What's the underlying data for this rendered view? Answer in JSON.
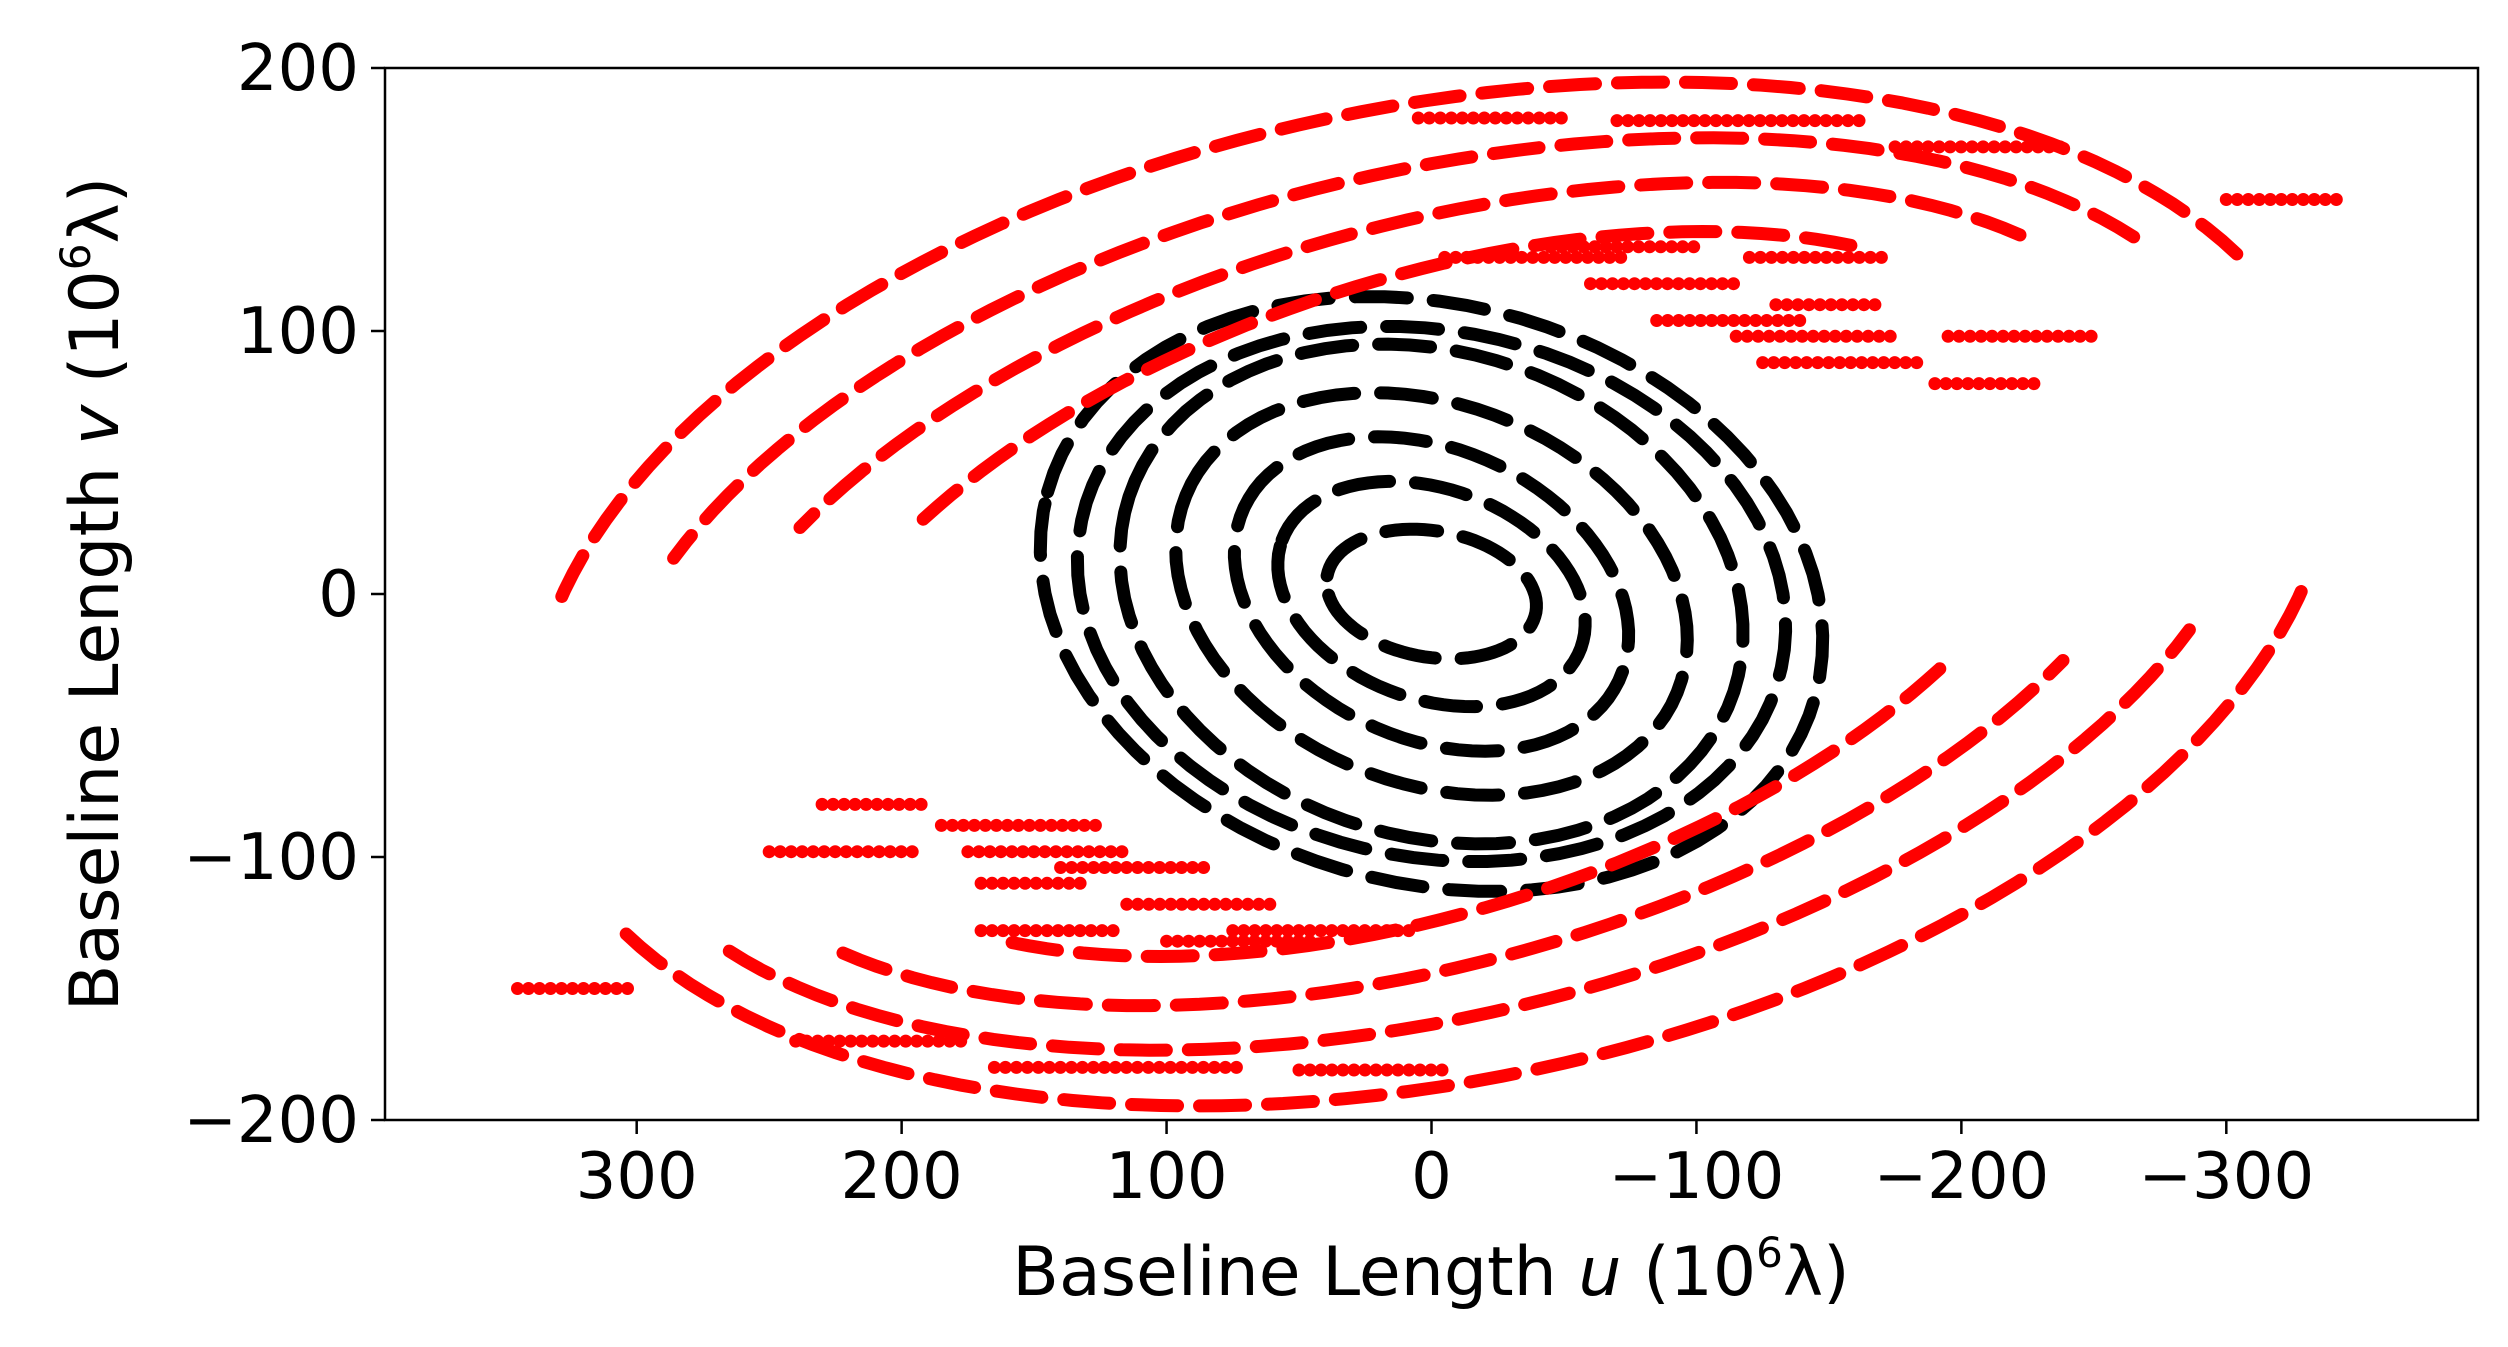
{
  "chart_data": {
    "type": "scatter",
    "xlabel_prefix": "Baseline Length ",
    "xlabel_var": "u",
    "ylabel_prefix": "Baseline Length ",
    "ylabel_var": "v",
    "axis_unit_open": " (10",
    "axis_unit_exp": "6",
    "axis_unit_close": "λ)",
    "x_reversed": true,
    "xlim": [
      395,
      -395
    ],
    "ylim": [
      -200,
      200
    ],
    "x_ticks": [
      300,
      200,
      100,
      0,
      -100,
      -200,
      -300
    ],
    "x_tick_labels": [
      "300",
      "200",
      "100",
      "0",
      "−100",
      "−200",
      "−300"
    ],
    "y_ticks": [
      200,
      100,
      0,
      -100,
      -200
    ],
    "y_tick_labels": [
      "200",
      "100",
      "0",
      "−100",
      "−200"
    ],
    "grid": false,
    "legend": "none",
    "series_colors": {
      "inner": "#000000",
      "outer": "#ff0000"
    },
    "series": [
      {
        "color": "#000000",
        "ellipses": [
          {
            "a": 120,
            "b": 92,
            "cx": 0,
            "cy": 0,
            "rot": 18
          },
          {
            "a": 150,
            "b": 110,
            "cx": 0,
            "cy": 0,
            "rot": 15
          },
          {
            "a": 100,
            "b": 72,
            "cx": 0,
            "cy": 0,
            "rot": 22
          },
          {
            "a": 78,
            "b": 55,
            "cx": 0,
            "cy": 0,
            "rot": 25
          },
          {
            "a": 60,
            "b": 40,
            "cx": 0,
            "cy": 0,
            "rot": 20
          },
          {
            "a": 40,
            "b": 24,
            "cx": 0,
            "cy": 0,
            "rot": 10
          },
          {
            "a": 135,
            "b": 100,
            "cx": 0,
            "cy": 0,
            "rot": 12
          }
        ]
      },
      {
        "color": "#ff0000",
        "arcs": [
          {
            "a": 345,
            "b": 185,
            "rot": 12,
            "from": 20,
            "to": 160
          },
          {
            "a": 320,
            "b": 160,
            "rot": 14,
            "from": 25,
            "to": 150
          },
          {
            "a": 290,
            "b": 140,
            "rot": 16,
            "from": 30,
            "to": 140
          },
          {
            "a": 250,
            "b": 120,
            "rot": 18,
            "from": 40,
            "to": 135
          },
          {
            "a": 345,
            "b": 185,
            "rot": 12,
            "from": 200,
            "to": 340
          },
          {
            "a": 320,
            "b": 160,
            "rot": 14,
            "from": 205,
            "to": 330
          },
          {
            "a": 290,
            "b": 140,
            "rot": 16,
            "from": 210,
            "to": 320
          },
          {
            "a": 250,
            "b": 120,
            "rot": 18,
            "from": 220,
            "to": 315
          }
        ],
        "rows": [
          {
            "u1": 5,
            "u2": -50,
            "v": 181
          },
          {
            "u1": -70,
            "u2": -165,
            "v": 180
          },
          {
            "u1": -175,
            "u2": -240,
            "v": 170
          },
          {
            "u1": -300,
            "u2": -345,
            "v": 150
          },
          {
            "u1": -5,
            "u2": -75,
            "v": 128
          },
          {
            "u1": -45,
            "u2": -100,
            "v": 132
          },
          {
            "u1": -60,
            "u2": -115,
            "v": 118
          },
          {
            "u1": -120,
            "u2": -170,
            "v": 128
          },
          {
            "u1": -130,
            "u2": -170,
            "v": 110
          },
          {
            "u1": -115,
            "u2": -175,
            "v": 98
          },
          {
            "u1": -125,
            "u2": -185,
            "v": 88
          },
          {
            "u1": -85,
            "u2": -140,
            "v": 104
          },
          {
            "u1": -195,
            "u2": -250,
            "v": 98
          },
          {
            "u1": -190,
            "u2": -230,
            "v": 80
          },
          {
            "u1": -5,
            "u2": 50,
            "v": -181
          },
          {
            "u1": 70,
            "u2": 165,
            "v": -180
          },
          {
            "u1": 175,
            "u2": 240,
            "v": -170
          },
          {
            "u1": 300,
            "u2": 345,
            "v": -150
          },
          {
            "u1": 5,
            "u2": 75,
            "v": -128
          },
          {
            "u1": 45,
            "u2": 100,
            "v": -132
          },
          {
            "u1": 60,
            "u2": 115,
            "v": -118
          },
          {
            "u1": 120,
            "u2": 170,
            "v": -128
          },
          {
            "u1": 130,
            "u2": 170,
            "v": -110
          },
          {
            "u1": 115,
            "u2": 175,
            "v": -98
          },
          {
            "u1": 125,
            "u2": 185,
            "v": -88
          },
          {
            "u1": 85,
            "u2": 140,
            "v": -104
          },
          {
            "u1": 195,
            "u2": 250,
            "v": -98
          },
          {
            "u1": 190,
            "u2": 230,
            "v": -80
          }
        ]
      }
    ]
  }
}
